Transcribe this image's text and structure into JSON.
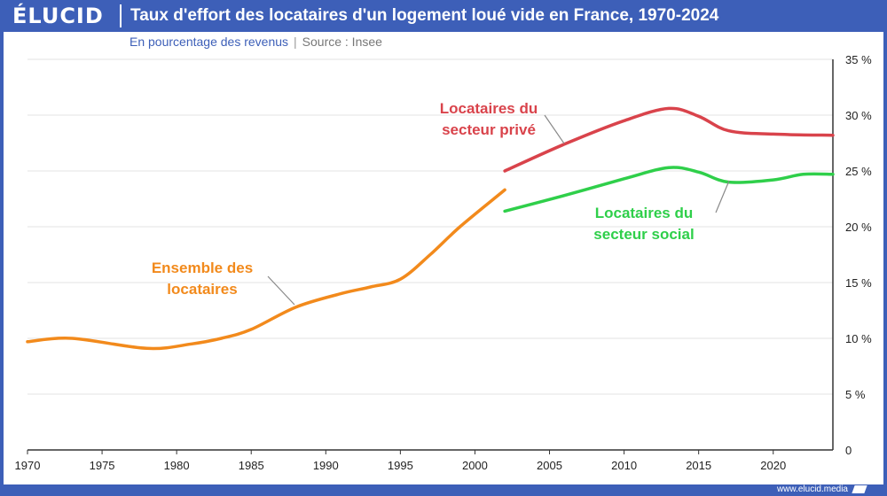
{
  "header": {
    "logo": "ÉLUCID",
    "title": "Taux d'effort des locataires d'un logement loué vide en France, 1970-2024"
  },
  "subtitle": "En pourcentage des revenus",
  "separator": "|",
  "source": "Source : Insee",
  "footer": {
    "url": "www.elucid.media"
  },
  "colors": {
    "brand": "#3d5fb8",
    "ensemble": "#f28a1c",
    "prive": "#d9434b",
    "social": "#2fcf4a"
  },
  "chart_data": {
    "type": "line",
    "xlim": [
      1970,
      2024
    ],
    "ylim": [
      0,
      35
    ],
    "x_ticks": [
      1970,
      1975,
      1980,
      1985,
      1990,
      1995,
      2000,
      2005,
      2010,
      2015,
      2020
    ],
    "x_tick_labels": [
      "1970",
      "1975",
      "1980",
      "1985",
      "1990",
      "1995",
      "2000",
      "2005",
      "2010",
      "2015",
      "2020"
    ],
    "y_ticks": [
      0,
      5,
      10,
      15,
      20,
      25,
      30,
      35
    ],
    "y_tick_labels": [
      "0",
      "5 %",
      "10 %",
      "15 %",
      "20 %",
      "25 %",
      "30 %",
      "35 %"
    ],
    "grid": true,
    "series": [
      {
        "name": "Ensemble des locataires",
        "label_lines": [
          "Ensemble des",
          "locataires"
        ],
        "color": "#f28a1c",
        "x": [
          1970,
          1973,
          1978,
          1981,
          1983,
          1985,
          1988,
          1991,
          1993,
          1995,
          1997,
          1999,
          2002
        ],
        "y": [
          9.7,
          10.0,
          9.1,
          9.5,
          10.0,
          10.8,
          12.8,
          14.0,
          14.6,
          15.3,
          17.5,
          20.0,
          23.3
        ]
      },
      {
        "name": "Locataires du secteur privé",
        "label_lines": [
          "Locataires du",
          "secteur privé"
        ],
        "color": "#d9434b",
        "x": [
          2002,
          2006,
          2010,
          2013,
          2015,
          2017,
          2020,
          2024
        ],
        "y": [
          25.0,
          27.4,
          29.5,
          30.6,
          29.9,
          28.6,
          28.3,
          28.2
        ]
      },
      {
        "name": "Locataires du secteur social",
        "label_lines": [
          "Locataires du",
          "secteur social"
        ],
        "color": "#2fcf4a",
        "x": [
          2002,
          2006,
          2010,
          2013,
          2015,
          2017,
          2020,
          2022,
          2024
        ],
        "y": [
          21.4,
          22.8,
          24.3,
          25.3,
          24.9,
          24.0,
          24.2,
          24.7,
          24.7
        ]
      }
    ]
  }
}
